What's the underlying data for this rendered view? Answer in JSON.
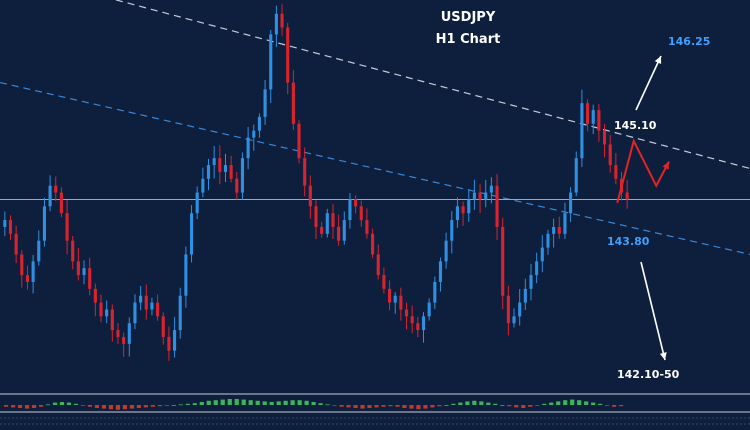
{
  "title": "USDJPY",
  "subtitle": "H1 Chart",
  "colors": {
    "background": "#0e1f3d",
    "bullish": "#2f8fe0",
    "bearish": "#d9232e",
    "resistance_line": "#c8ccd6",
    "support_line": "#3a86d6",
    "horizontal_line": "#9aa6bf",
    "projection": "#e32424",
    "arrow": "#ffffff",
    "target_label": "#3ea0ff",
    "level_label": "#ffffff",
    "support_label": "#3ea0ff",
    "oscillator_up": "#3cb45a",
    "oscillator_down": "#c0392b"
  },
  "levels": {
    "upper_target": "146.25",
    "resistance": "145.10",
    "support": "143.80",
    "lower_target": "142.10-50"
  },
  "chart_data": {
    "type": "candlestick",
    "title": "USDJPY",
    "subtitle": "H1 Chart",
    "ylim": [
      141.2,
      146.9
    ],
    "horizontal_level": 144.0,
    "trendlines": [
      {
        "name": "resistance",
        "style": "dashed",
        "start": [
          0.0,
          147.35
        ],
        "end": [
          1.0,
          144.45
        ]
      },
      {
        "name": "support",
        "style": "dashed",
        "start": [
          0.0,
          145.7
        ],
        "end": [
          1.0,
          143.2
        ]
      }
    ],
    "closes": [
      143.7,
      143.5,
      143.2,
      142.9,
      142.8,
      143.1,
      143.4,
      143.9,
      144.2,
      144.1,
      143.8,
      143.4,
      143.1,
      142.9,
      143.0,
      142.7,
      142.5,
      142.3,
      142.4,
      142.1,
      142.0,
      141.9,
      142.2,
      142.5,
      142.6,
      142.4,
      142.5,
      142.3,
      142.0,
      141.8,
      142.1,
      142.6,
      143.2,
      143.8,
      144.1,
      144.3,
      144.5,
      144.6,
      144.4,
      144.5,
      144.3,
      144.1,
      144.6,
      144.9,
      145.0,
      145.2,
      145.6,
      146.4,
      146.7,
      146.5,
      145.7,
      145.1,
      144.6,
      144.2,
      143.9,
      143.6,
      143.5,
      143.8,
      143.6,
      143.4,
      143.7,
      144.0,
      143.9,
      143.7,
      143.5,
      143.2,
      142.9,
      142.7,
      142.5,
      142.6,
      142.4,
      142.3,
      142.2,
      142.1,
      142.3,
      142.5,
      142.8,
      143.1,
      143.4,
      143.7,
      143.9,
      143.8,
      144.0,
      144.1,
      144.0,
      144.1,
      144.2,
      143.6,
      142.6,
      142.2,
      142.3,
      142.5,
      142.7,
      142.9,
      143.1,
      143.3,
      143.5,
      143.6,
      143.5,
      143.8,
      144.1,
      144.6,
      145.4,
      145.1,
      145.3,
      145.0,
      144.8,
      144.5,
      144.3,
      144.1,
      144.0
    ],
    "projection": {
      "path": [
        [
          0.823,
          143.95
        ],
        [
          0.845,
          144.85
        ],
        [
          0.875,
          144.2
        ],
        [
          0.892,
          144.55
        ]
      ]
    },
    "annotations": [
      {
        "text": "146.25",
        "y": 146.25
      },
      {
        "text": "145.10",
        "y": 145.1
      },
      {
        "text": "143.80",
        "y": 143.8
      },
      {
        "text": "142.10-50",
        "y": 142.1
      }
    ],
    "oscillator": [
      -0.3,
      -0.4,
      -0.5,
      -0.6,
      -0.5,
      -0.3,
      0.1,
      0.4,
      0.5,
      0.4,
      0.2,
      -0.1,
      -0.3,
      -0.5,
      -0.6,
      -0.7,
      -0.8,
      -0.7,
      -0.6,
      -0.5,
      -0.4,
      -0.3,
      -0.2,
      -0.1,
      0.0,
      0.1,
      0.2,
      0.3,
      0.5,
      0.7,
      0.8,
      0.9,
      1.0,
      1.0,
      0.9,
      0.8,
      0.7,
      0.6,
      0.5,
      0.6,
      0.7,
      0.8,
      0.8,
      0.7,
      0.5,
      0.3,
      0.1,
      -0.1,
      -0.3,
      -0.4,
      -0.5,
      -0.6,
      -0.5,
      -0.4,
      -0.3,
      -0.2,
      -0.3,
      -0.5,
      -0.6,
      -0.7,
      -0.6,
      -0.4,
      -0.2,
      0.0,
      0.2,
      0.4,
      0.6,
      0.7,
      0.6,
      0.4,
      0.2,
      0.0,
      -0.2,
      -0.4,
      -0.5,
      -0.3,
      -0.1,
      0.2,
      0.4,
      0.6,
      0.8,
      0.9,
      0.8,
      0.6,
      0.4,
      0.2,
      -0.1,
      -0.3,
      -0.2
    ]
  }
}
